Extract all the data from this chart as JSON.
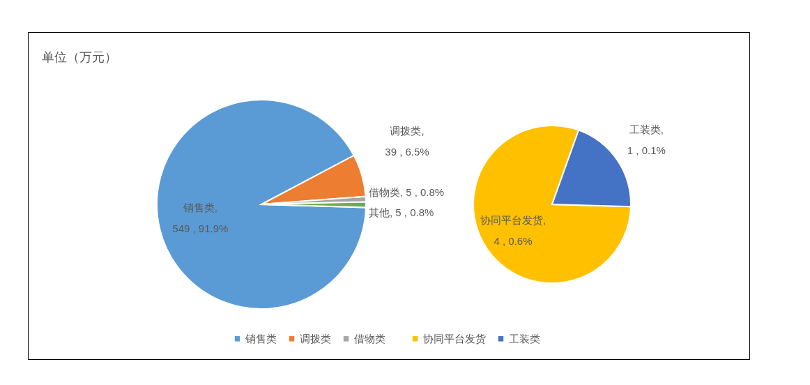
{
  "chart_data": [
    {
      "type": "pie",
      "title": "单位（万元）",
      "categories": [
        "销售类",
        "调拨类",
        "借物类",
        "其他"
      ],
      "values": [
        549,
        39,
        5,
        5
      ],
      "colors": [
        "#5b9bd5",
        "#ed7d31",
        "#a5a5a5",
        "#70ad47"
      ],
      "value_labels": [
        ", 549 , 91.9%",
        ", 39 , 6.5%",
        ", 5 , 0.8%",
        ", 5 , 0.8%"
      ],
      "legend": "bottom"
    },
    {
      "type": "pie",
      "categories": [
        "协同平台发货",
        "工装类"
      ],
      "values": [
        4,
        1
      ],
      "colors": [
        "#ffc000",
        "#4472c4"
      ],
      "value_labels": [
        ", 4 , 0.6%",
        ", 1 , 0.1%"
      ],
      "legend": "bottom"
    }
  ]
}
